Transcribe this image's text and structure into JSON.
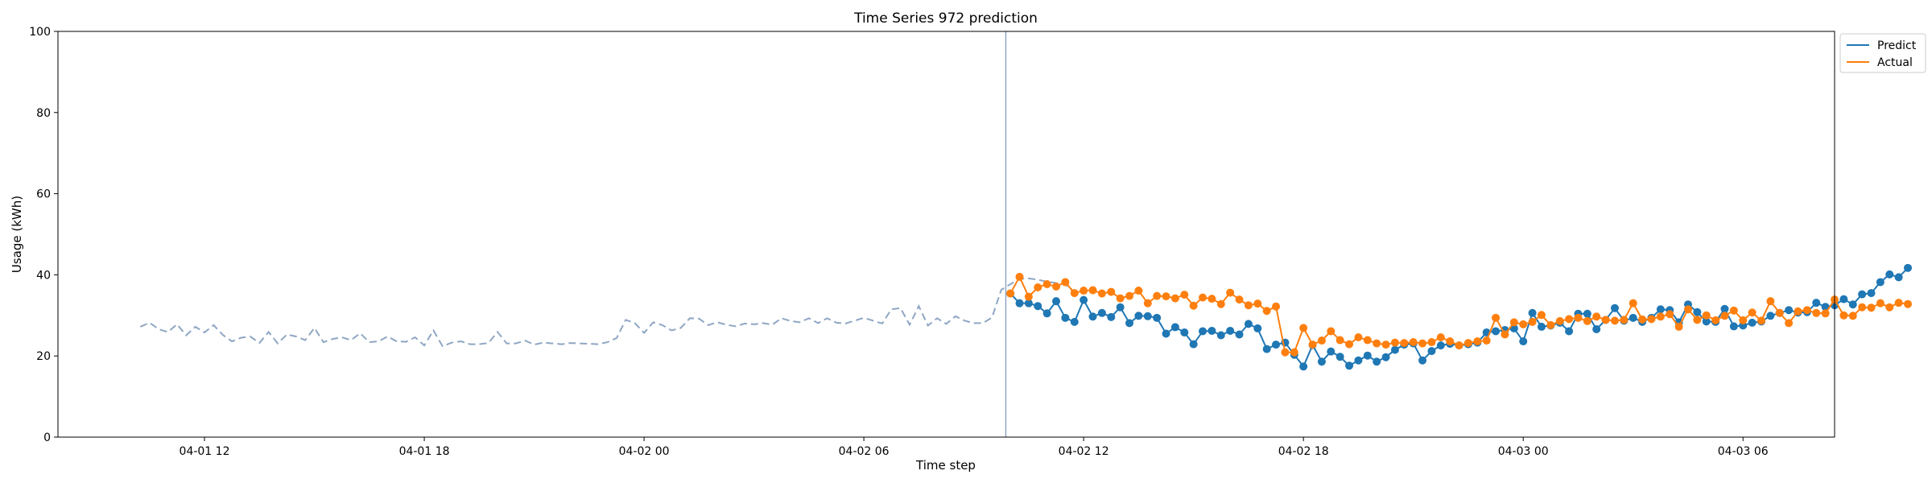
{
  "chart_data": {
    "type": "line",
    "title": "Time Series 972 prediction",
    "xlabel": "Time step",
    "ylabel": "Usage (kWh)",
    "ylim": [
      0,
      100
    ],
    "yticks": [
      0,
      20,
      40,
      60,
      80,
      100
    ],
    "xlim": [
      0,
      194
    ],
    "xticks": [
      {
        "x": 16,
        "label": "04-01 12"
      },
      {
        "x": 40,
        "label": "04-01 18"
      },
      {
        "x": 64,
        "label": "04-02 00"
      },
      {
        "x": 88,
        "label": "04-02 06"
      },
      {
        "x": 112,
        "label": "04-02 12"
      },
      {
        "x": 136,
        "label": "04-02 18"
      },
      {
        "x": 160,
        "label": "04-03 00"
      },
      {
        "x": 184,
        "label": "04-03 06"
      }
    ],
    "forecast_start_x": 103.5,
    "grid": false,
    "legend_position": "upper-right-outside",
    "colors": {
      "history": "#8fa6c4",
      "predict": "#1f77b4",
      "actual": "#ff7f0e",
      "divider": "#8fa6c4"
    },
    "series": [
      {
        "name": null,
        "role": "history",
        "x_start": 9,
        "values": [
          27.2,
          28.2,
          26.6,
          25.9,
          27.8,
          25.1,
          27.2,
          25.8,
          27.6,
          25.2,
          23.6,
          24.5,
          24.8,
          23.2,
          25.9,
          23.1,
          25.3,
          24.8,
          23.9,
          26.9,
          23.4,
          24.2,
          24.6,
          23.9,
          25.6,
          23.4,
          23.6,
          24.8,
          23.6,
          23.5,
          24.6,
          22.6,
          26.3,
          22.4,
          23.3,
          23.6,
          22.9,
          22.9,
          23.2,
          25.9,
          23.1,
          23.1,
          23.8,
          22.8,
          23.3,
          23.1,
          22.9,
          23.2,
          23.1,
          23.0,
          22.9,
          23.4,
          24.4,
          28.9,
          28.1,
          25.7,
          28.3,
          27.6,
          26.3,
          26.9,
          29.3,
          29.2,
          27.6,
          28.3,
          27.7,
          27.3,
          28.0,
          27.8,
          28.1,
          27.7,
          29.3,
          28.6,
          28.3,
          29.3,
          28.1,
          29.3,
          28.2,
          28.0,
          28.7,
          29.4,
          28.7,
          28.0,
          31.5,
          31.8,
          27.7,
          32.3,
          27.5,
          29.3,
          27.9,
          29.8,
          28.7,
          28.1,
          28.1,
          29.5,
          36.3,
          37.7,
          39.0,
          39.1,
          38.8,
          38.3,
          38.0,
          37.7,
          35.6
        ]
      },
      {
        "name": "Predict",
        "role": "predict",
        "x_start": 104,
        "values": [
          35.4,
          33.0,
          33.0,
          32.3,
          30.5,
          33.5,
          29.4,
          28.4,
          33.8,
          29.7,
          30.6,
          29.6,
          32.0,
          28.1,
          29.9,
          29.8,
          29.4,
          25.5,
          27.1,
          25.8,
          22.9,
          26.1,
          26.2,
          25.1,
          26.2,
          25.3,
          27.9,
          26.8,
          21.7,
          22.8,
          23.3,
          20.3,
          17.4,
          22.7,
          18.6,
          21.1,
          19.8,
          17.6,
          18.9,
          20.1,
          18.6,
          19.7,
          21.5,
          22.8,
          23.1,
          18.9,
          21.2,
          22.6,
          23.0,
          22.6,
          22.9,
          23.3,
          25.8,
          26.1,
          26.4,
          26.8,
          23.6,
          30.6,
          27.2,
          27.5,
          28.2,
          26.1,
          30.4,
          30.4,
          26.6,
          28.9,
          31.8,
          28.7,
          29.4,
          28.4,
          29.4,
          31.5,
          31.3,
          28.3,
          32.7,
          30.8,
          28.5,
          28.4,
          31.6,
          27.3,
          27.5,
          28.2,
          28.5,
          29.9,
          30.6,
          31.3,
          30.7,
          30.8,
          33.1,
          32.1,
          32.5,
          34.0,
          32.7,
          35.2,
          35.5,
          38.2,
          40.1,
          39.4,
          41.7
        ]
      },
      {
        "name": "Actual",
        "role": "actual",
        "x_start": 104,
        "values": [
          35.4,
          39.5,
          34.6,
          36.9,
          37.7,
          37.1,
          38.2,
          35.5,
          36.1,
          36.2,
          35.4,
          35.8,
          34.2,
          34.8,
          36.1,
          33.0,
          34.8,
          34.7,
          34.2,
          35.1,
          32.4,
          34.4,
          34.1,
          32.8,
          35.6,
          33.9,
          32.5,
          32.9,
          31.1,
          32.2,
          20.9,
          20.9,
          26.9,
          22.8,
          23.8,
          26.1,
          23.9,
          22.9,
          24.6,
          23.9,
          23.1,
          22.8,
          23.3,
          23.2,
          23.4,
          23.1,
          23.4,
          24.6,
          23.6,
          22.6,
          23.2,
          23.6,
          23.8,
          29.4,
          25.3,
          28.3,
          27.8,
          28.4,
          30.1,
          27.6,
          28.6,
          29.1,
          29.4,
          28.6,
          29.7,
          28.9,
          28.7,
          28.9,
          33.0,
          29.0,
          29.1,
          29.7,
          30.3,
          27.2,
          31.5,
          28.9,
          30.0,
          28.8,
          29.9,
          31.2,
          28.8,
          30.7,
          28.7,
          33.5,
          30.6,
          28.1,
          31.0,
          31.3,
          30.6,
          30.5,
          33.9,
          30.0,
          29.9,
          32.0,
          31.9,
          33.0,
          32.0,
          33.1,
          32.8
        ]
      }
    ]
  }
}
